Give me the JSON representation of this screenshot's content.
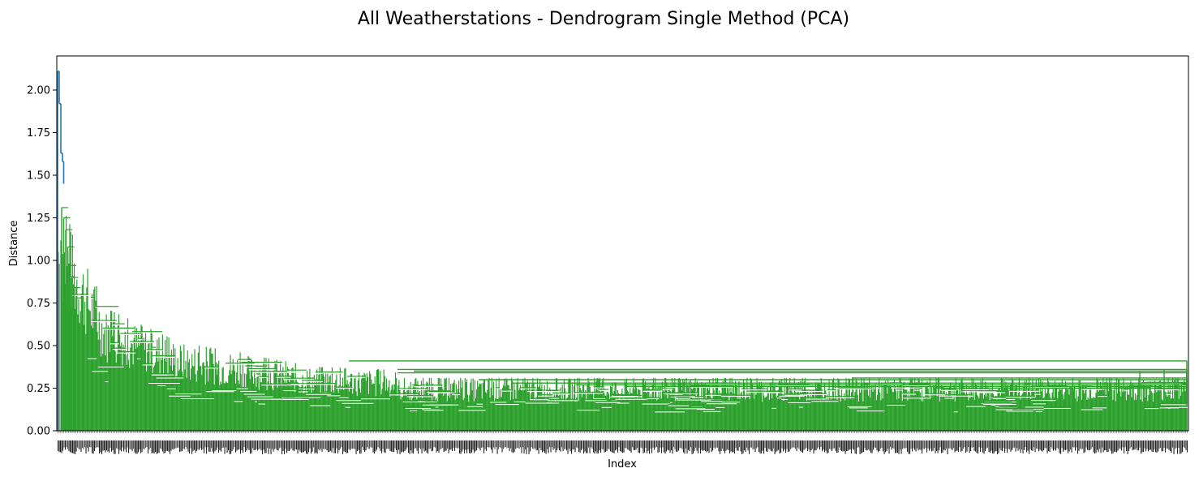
{
  "chart_data": {
    "type": "dendrogram",
    "title": "All Weatherstations - Dendrogram Single Method (PCA)",
    "xlabel": "Index",
    "ylabel": "Distance",
    "ylim": [
      0,
      2.2
    ],
    "yticks": [
      0.0,
      0.25,
      0.5,
      0.75,
      1.0,
      1.25,
      1.5,
      1.75,
      2.0
    ],
    "ytick_labels": [
      "0.00",
      "0.25",
      "0.50",
      "0.75",
      "1.00",
      "1.25",
      "1.50",
      "1.75",
      "2.00"
    ],
    "colors": {
      "above_threshold": "#1f77b4",
      "cluster_1": "#2ca02c",
      "cluster_2": "#7f7f7f"
    },
    "leaf_count": 1400,
    "merge_heights_descending": [
      2.11,
      1.92,
      1.63,
      1.58,
      1.45,
      1.31,
      1.25,
      1.18,
      1.08,
      0.97,
      0.9,
      0.84,
      0.78,
      0.72,
      0.67,
      0.63,
      0.61,
      0.59,
      0.56,
      0.53,
      0.52,
      0.51,
      0.5,
      0.49,
      0.48,
      0.47,
      0.46,
      0.45,
      0.44,
      0.43,
      0.42,
      0.41,
      0.4,
      0.39,
      0.38,
      0.37,
      0.36,
      0.35,
      0.34,
      0.33,
      0.32,
      0.31,
      0.3,
      0.29,
      0.28,
      0.27,
      0.26,
      0.25,
      0.24,
      0.23,
      0.22,
      0.21,
      0.2,
      0.19,
      0.18,
      0.17,
      0.16,
      0.15,
      0.14,
      0.12,
      0.1
    ],
    "upper_plateau_heights": [
      0.41,
      0.36,
      0.35,
      0.34,
      0.31,
      0.3,
      0.28,
      0.27,
      0.26,
      0.25
    ]
  }
}
